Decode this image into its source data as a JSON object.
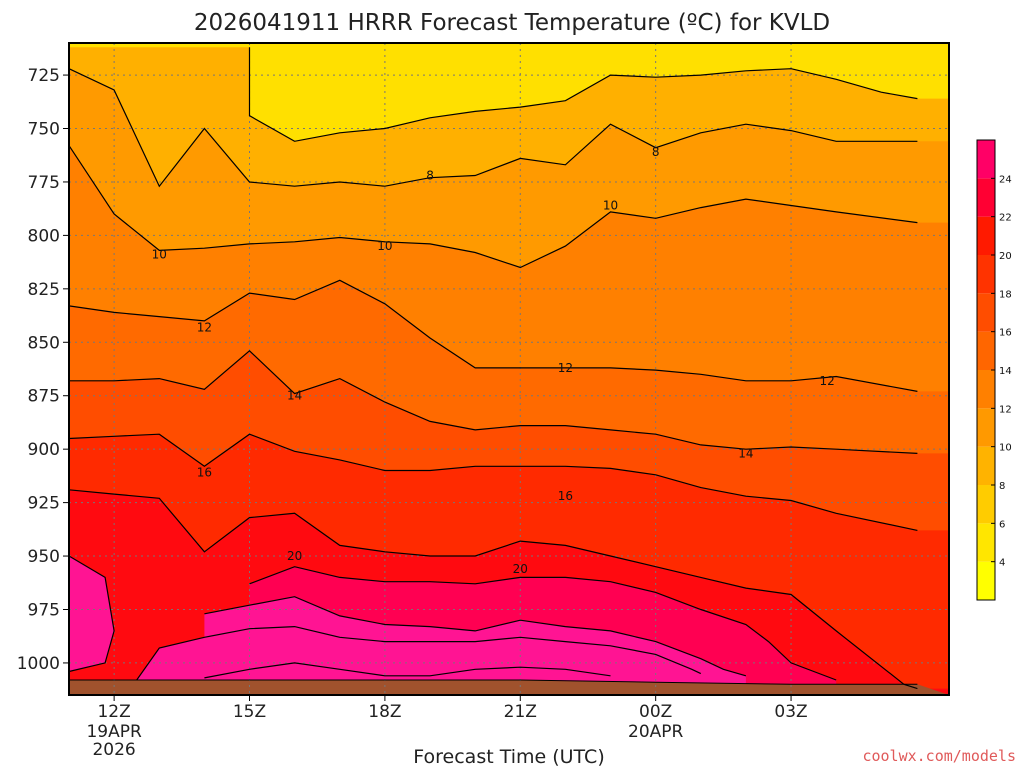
{
  "chart_data": {
    "type": "heatmap",
    "title": "2026041911 HRRR Forecast Temperature (ºC) for KVLD",
    "xlabel": "Forecast Time (UTC)",
    "ylabel": "",
    "credit": "coolwx.com/models",
    "y_axis": {
      "ticks": [
        725,
        750,
        775,
        800,
        825,
        850,
        875,
        900,
        925,
        950,
        975,
        1000
      ],
      "inverted": true,
      "range": [
        710,
        1015
      ]
    },
    "x_axis": {
      "range": [
        11,
        30.5
      ],
      "ticks": [
        {
          "value": 12,
          "label": "12Z",
          "sub1": "19APR",
          "sub2": "2026"
        },
        {
          "value": 15,
          "label": "15Z",
          "sub1": "",
          "sub2": ""
        },
        {
          "value": 18,
          "label": "18Z",
          "sub1": "",
          "sub2": ""
        },
        {
          "value": 21,
          "label": "21Z",
          "sub1": "",
          "sub2": ""
        },
        {
          "value": 24,
          "label": "00Z",
          "sub1": "20APR",
          "sub2": ""
        },
        {
          "value": 27,
          "label": "03Z",
          "sub1": "",
          "sub2": ""
        }
      ]
    },
    "grid": true,
    "colorbar": {
      "placement": "right",
      "levels": [
        2,
        4,
        6,
        8,
        10,
        12,
        14,
        16,
        18,
        20,
        22,
        24,
        26
      ],
      "tick_labels": [
        4,
        6,
        8,
        10,
        12,
        14,
        16,
        18,
        20,
        22,
        24
      ],
      "colors": [
        "#ffff00",
        "#ffe600",
        "#ffcc00",
        "#ffb300",
        "#ff9900",
        "#ff8000",
        "#ff6600",
        "#ff4d00",
        "#ff3300",
        "#ff1a00",
        "#ff0033",
        "#ff0066"
      ]
    },
    "fill_colors": {
      "lt8": "#ffe000",
      "8-10": "#ffb000",
      "10-12": "#ff9a00",
      "12-14": "#ff8000",
      "14-16": "#ff6a00",
      "16-18": "#ff4d00",
      "18-20": "#ff2a00",
      "20-22": "#ff0a10",
      "22-24": "#ff0052",
      "ge24": "#ff1493",
      "ground": "#a0522d"
    },
    "contour_labels": [
      {
        "text": "8",
        "x": 19.0,
        "p": 772
      },
      {
        "text": "8",
        "x": 24.0,
        "p": 761
      },
      {
        "text": "10",
        "x": 13.0,
        "p": 809
      },
      {
        "text": "10",
        "x": 18.0,
        "p": 805
      },
      {
        "text": "10",
        "x": 23.0,
        "p": 786
      },
      {
        "text": "12",
        "x": 14.0,
        "p": 843
      },
      {
        "text": "12",
        "x": 22.0,
        "p": 862
      },
      {
        "text": "12",
        "x": 27.8,
        "p": 868
      },
      {
        "text": "14",
        "x": 16.0,
        "p": 875
      },
      {
        "text": "14",
        "x": 26.0,
        "p": 902
      },
      {
        "text": "16",
        "x": 14.0,
        "p": 911
      },
      {
        "text": "16",
        "x": 22.0,
        "p": 922
      },
      {
        "text": "20",
        "x": 16.0,
        "p": 950
      },
      {
        "text": "20",
        "x": 21.0,
        "p": 956
      }
    ],
    "contours": [
      {
        "level": 8,
        "points": [
          [
            15.0,
            712
          ],
          [
            15.0,
            744
          ],
          [
            16.0,
            756
          ],
          [
            17.0,
            752
          ],
          [
            18.0,
            750
          ],
          [
            19.0,
            745
          ],
          [
            20.0,
            742
          ],
          [
            21.0,
            740
          ],
          [
            22.0,
            737
          ],
          [
            23.0,
            725
          ],
          [
            24.0,
            726
          ],
          [
            25.0,
            725
          ],
          [
            26.0,
            723
          ],
          [
            27.0,
            722
          ],
          [
            28.0,
            727
          ],
          [
            29.0,
            733
          ],
          [
            29.8,
            736
          ]
        ]
      },
      {
        "level": 10,
        "points": [
          [
            11.0,
            722
          ],
          [
            12.0,
            732
          ],
          [
            13.0,
            777
          ],
          [
            14.0,
            750
          ],
          [
            15.0,
            775
          ],
          [
            16.0,
            777
          ],
          [
            17.0,
            775
          ],
          [
            18.0,
            777
          ],
          [
            19.0,
            773
          ],
          [
            20.0,
            772
          ],
          [
            21.0,
            764
          ],
          [
            22.0,
            767
          ],
          [
            23.0,
            748
          ],
          [
            24.0,
            759
          ],
          [
            25.0,
            752
          ],
          [
            26.0,
            748
          ],
          [
            27.0,
            751
          ],
          [
            28.0,
            756
          ],
          [
            29.8,
            756
          ]
        ]
      },
      {
        "level": 12,
        "points": [
          [
            11.0,
            758
          ],
          [
            12.0,
            790
          ],
          [
            13.0,
            807
          ],
          [
            14.0,
            806
          ],
          [
            15.0,
            804
          ],
          [
            16.0,
            803
          ],
          [
            17.0,
            801
          ],
          [
            18.0,
            803
          ],
          [
            19.0,
            804
          ],
          [
            20.0,
            808
          ],
          [
            21.0,
            815
          ],
          [
            22.0,
            805
          ],
          [
            23.0,
            789
          ],
          [
            24.0,
            792
          ],
          [
            25.0,
            787
          ],
          [
            26.0,
            783
          ],
          [
            27.0,
            786
          ],
          [
            28.0,
            789
          ],
          [
            29.8,
            794
          ]
        ]
      },
      {
        "level": 14,
        "points": [
          [
            11.0,
            833
          ],
          [
            12.0,
            836
          ],
          [
            13.0,
            838
          ],
          [
            14.0,
            840
          ],
          [
            15.0,
            827
          ],
          [
            16.0,
            830
          ],
          [
            17.0,
            821
          ],
          [
            18.0,
            832
          ],
          [
            19.0,
            848
          ],
          [
            20.0,
            862
          ],
          [
            21.0,
            862
          ],
          [
            22.0,
            862
          ],
          [
            23.0,
            862
          ],
          [
            24.0,
            863
          ],
          [
            25.0,
            865
          ],
          [
            26.0,
            868
          ],
          [
            27.0,
            868
          ],
          [
            28.0,
            866
          ],
          [
            29.8,
            873
          ]
        ]
      },
      {
        "level": 16,
        "points": [
          [
            11.0,
            868
          ],
          [
            12.0,
            868
          ],
          [
            13.0,
            867
          ],
          [
            14.0,
            872
          ],
          [
            15.0,
            854
          ],
          [
            16.0,
            874
          ],
          [
            17.0,
            867
          ],
          [
            18.0,
            878
          ],
          [
            19.0,
            887
          ],
          [
            20.0,
            891
          ],
          [
            21.0,
            889
          ],
          [
            22.0,
            889
          ],
          [
            23.0,
            891
          ],
          [
            24.0,
            893
          ],
          [
            25.0,
            898
          ],
          [
            26.0,
            900
          ],
          [
            27.0,
            899
          ],
          [
            28.0,
            900
          ],
          [
            29.8,
            902
          ]
        ]
      },
      {
        "level": 18,
        "points": [
          [
            11.0,
            895
          ],
          [
            12.0,
            894
          ],
          [
            13.0,
            893
          ],
          [
            14.0,
            908
          ],
          [
            15.0,
            893
          ],
          [
            16.0,
            901
          ],
          [
            17.0,
            905
          ],
          [
            18.0,
            910
          ],
          [
            19.0,
            910
          ],
          [
            20.0,
            908
          ],
          [
            21.0,
            908
          ],
          [
            22.0,
            908
          ],
          [
            23.0,
            909
          ],
          [
            24.0,
            912
          ],
          [
            25.0,
            918
          ],
          [
            26.0,
            922
          ],
          [
            27.0,
            924
          ],
          [
            28.0,
            930
          ],
          [
            29.8,
            938
          ]
        ]
      },
      {
        "level": 20,
        "points": [
          [
            11.0,
            919
          ],
          [
            12.0,
            921
          ],
          [
            13.0,
            923
          ],
          [
            14.0,
            948
          ],
          [
            15.0,
            932
          ],
          [
            16.0,
            930
          ],
          [
            17.0,
            945
          ],
          [
            18.0,
            948
          ],
          [
            19.0,
            950
          ],
          [
            20.0,
            950
          ],
          [
            21.0,
            943
          ],
          [
            22.0,
            945
          ],
          [
            23.0,
            950
          ],
          [
            24.0,
            955
          ],
          [
            25.0,
            960
          ],
          [
            26.0,
            965
          ],
          [
            27.0,
            968
          ],
          [
            28.0,
            985
          ],
          [
            29.5,
            1010
          ],
          [
            29.8,
            1012
          ]
        ]
      },
      {
        "level": 22,
        "points": [
          [
            15.0,
            963
          ],
          [
            16.0,
            955
          ],
          [
            17.0,
            960
          ],
          [
            18.0,
            962
          ],
          [
            19.0,
            962
          ],
          [
            20.0,
            963
          ],
          [
            21.0,
            960
          ],
          [
            22.0,
            960
          ],
          [
            23.0,
            962
          ],
          [
            24.0,
            967
          ],
          [
            25.0,
            975
          ],
          [
            26.0,
            982
          ],
          [
            26.5,
            990
          ],
          [
            27.0,
            1000
          ],
          [
            28.0,
            1008
          ]
        ]
      },
      {
        "level": 24,
        "points": [
          [
            14.0,
            977
          ],
          [
            15.0,
            973
          ],
          [
            16.0,
            969
          ],
          [
            17.0,
            978
          ],
          [
            18.0,
            982
          ],
          [
            19.0,
            983
          ],
          [
            20.0,
            985
          ],
          [
            21.0,
            980
          ],
          [
            22.0,
            983
          ],
          [
            23.0,
            985
          ],
          [
            24.0,
            990
          ],
          [
            25.0,
            998
          ],
          [
            25.5,
            1003
          ],
          [
            26.0,
            1006
          ]
        ]
      },
      {
        "level": 26,
        "points": [
          [
            12.5,
            1008
          ],
          [
            13.0,
            993
          ],
          [
            14.0,
            988
          ],
          [
            15.0,
            984
          ],
          [
            16.0,
            983
          ],
          [
            17.0,
            988
          ],
          [
            18.0,
            990
          ],
          [
            19.0,
            990
          ],
          [
            20.0,
            990
          ],
          [
            21.0,
            988
          ],
          [
            22.0,
            990
          ],
          [
            23.0,
            992
          ],
          [
            24.0,
            996
          ],
          [
            24.8,
            1003
          ],
          [
            25.0,
            1005
          ]
        ]
      },
      {
        "level": 28,
        "points": [
          [
            14.0,
            1007
          ],
          [
            15.0,
            1003
          ],
          [
            16.0,
            1000
          ],
          [
            17.0,
            1003
          ],
          [
            18.0,
            1006
          ],
          [
            19.0,
            1006
          ],
          [
            20.0,
            1003
          ],
          [
            21.0,
            1002
          ],
          [
            22.0,
            1003
          ],
          [
            23.0,
            1006
          ]
        ]
      },
      {
        "level": 30,
        "points": [
          [
            11.0,
            950
          ],
          [
            11.8,
            960
          ],
          [
            12.0,
            985
          ],
          [
            11.8,
            1000
          ],
          [
            11.0,
            1004
          ]
        ]
      }
    ],
    "ground_surface": [
      [
        11.0,
        1008
      ],
      [
        15.0,
        1008
      ],
      [
        18.0,
        1008
      ],
      [
        21.0,
        1008
      ],
      [
        24.0,
        1009
      ],
      [
        27.0,
        1010
      ],
      [
        29.8,
        1010
      ]
    ]
  }
}
